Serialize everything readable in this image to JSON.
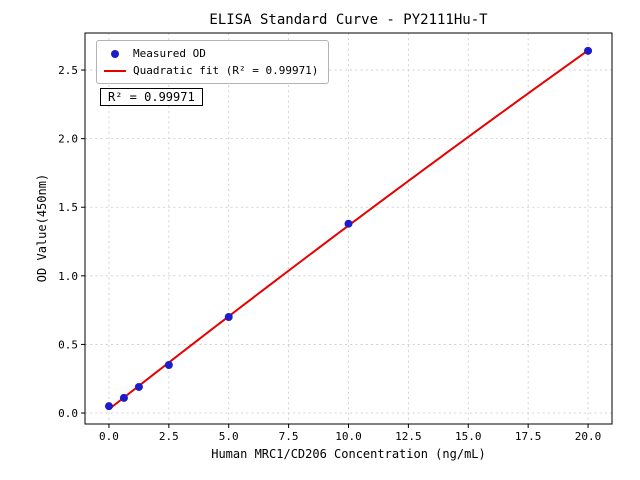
{
  "chart_data": {
    "type": "scatter",
    "title": "ELISA Standard Curve - PY2111Hu-T",
    "xlabel": "Human MRC1/CD206 Concentration (ng/mL)",
    "ylabel": "OD Value(450nm)",
    "xlim": [
      -1,
      21
    ],
    "ylim": [
      -0.08,
      2.77
    ],
    "grid": true,
    "xticks": {
      "values": [
        0,
        2.5,
        5,
        7.5,
        10,
        12.5,
        15,
        17.5,
        20
      ],
      "labels": [
        "0.0",
        "2.5",
        "5.0",
        "7.5",
        "10.0",
        "12.5",
        "15.0",
        "17.5",
        "20.0"
      ]
    },
    "yticks": {
      "values": [
        0,
        0.5,
        1.0,
        1.5,
        2.0,
        2.5
      ],
      "labels": [
        "0.0",
        "0.5",
        "1.0",
        "1.5",
        "2.0",
        "2.5"
      ]
    },
    "series": [
      {
        "name": "Measured OD",
        "type": "scatter",
        "color": "#1c1ccd",
        "x": [
          0,
          0.625,
          1.25,
          2.5,
          5,
          10,
          20
        ],
        "y": [
          0.05,
          0.11,
          0.19,
          0.35,
          0.7,
          1.38,
          2.64
        ]
      },
      {
        "name": "Quadratic fit (R² = 0.99971)",
        "type": "quadratic-fit",
        "color": "#e60000"
      }
    ],
    "annotation": {
      "text": "R² = 0.99971"
    },
    "r_squared": 0.99971,
    "legend_position": "upper left",
    "colors": {
      "grid": "#c8c8c8",
      "frame": "#000000",
      "background": "#ffffff"
    }
  }
}
